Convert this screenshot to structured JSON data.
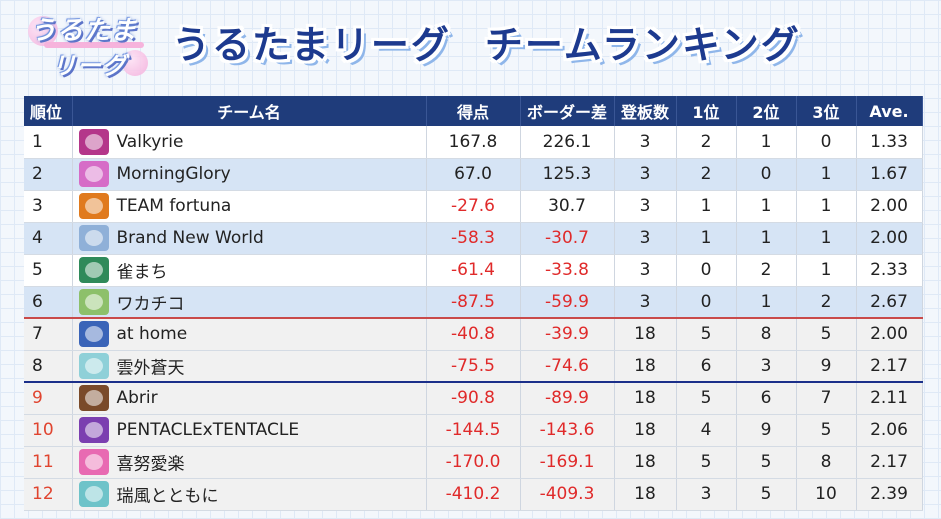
{
  "logo": {
    "line1": "うるたま",
    "line2": "リーグ"
  },
  "title": {
    "part1": "うるたまリーグ",
    "part2": "チームランキング"
  },
  "headers": [
    "順位",
    "チーム名",
    "得点",
    "ボーダー差",
    "登板数",
    "1位",
    "2位",
    "3位",
    "Ave."
  ],
  "colors": {
    "header_bg": "#1f3c7b",
    "negative": "#e02a2a",
    "stripe": "#d6e4f5",
    "red_line": "#c94a4a",
    "blue_line": "#1b2f8a"
  },
  "rows": [
    {
      "rank": "1",
      "team": "Valkyrie",
      "emblem": "valkyrie-emblem",
      "emblem_color": "#b4368a",
      "score": "167.8",
      "border": "226.1",
      "games": "3",
      "first": "2",
      "second": "1",
      "third": "0",
      "ave": "1.33"
    },
    {
      "rank": "2",
      "team": "MorningGlory",
      "emblem": "morningglory-emblem",
      "emblem_color": "#d66cc7",
      "score": "67.0",
      "border": "125.3",
      "games": "3",
      "first": "2",
      "second": "0",
      "third": "1",
      "ave": "1.67"
    },
    {
      "rank": "3",
      "team": "TEAM fortuna",
      "emblem": "fortuna-emblem",
      "emblem_color": "#e07a1e",
      "score": "-27.6",
      "border": "30.7",
      "games": "3",
      "first": "1",
      "second": "1",
      "third": "1",
      "ave": "2.00"
    },
    {
      "rank": "4",
      "team": "Brand New World",
      "emblem": "brandnewworld-emblem",
      "emblem_color": "#8fb0d8",
      "score": "-58.3",
      "border": "-30.7",
      "games": "3",
      "first": "1",
      "second": "1",
      "third": "1",
      "ave": "2.00"
    },
    {
      "rank": "5",
      "team": "雀まち",
      "emblem": "jyanmachi-emblem",
      "emblem_color": "#2f8a5a",
      "score": "-61.4",
      "border": "-33.8",
      "games": "3",
      "first": "0",
      "second": "2",
      "third": "1",
      "ave": "2.33"
    },
    {
      "rank": "6",
      "team": "ワカチコ",
      "emblem": "wakachiko-emblem",
      "emblem_color": "#8dc06a",
      "score": "-87.5",
      "border": "-59.9",
      "games": "3",
      "first": "0",
      "second": "1",
      "third": "2",
      "ave": "2.67"
    },
    {
      "rank": "7",
      "team": "at home",
      "emblem": "athome-emblem",
      "emblem_color": "#3a64b8",
      "score": "-40.8",
      "border": "-39.9",
      "games": "18",
      "first": "5",
      "second": "8",
      "third": "5",
      "ave": "2.00"
    },
    {
      "rank": "8",
      "team": "雲外蒼天",
      "emblem": "ungaisouten-emblem",
      "emblem_color": "#8fd0d8",
      "score": "-75.5",
      "border": "-74.6",
      "games": "18",
      "first": "6",
      "second": "3",
      "third": "9",
      "ave": "2.17"
    },
    {
      "rank": "9",
      "team": "Abrir",
      "emblem": "abrir-emblem",
      "emblem_color": "#7a4a2a",
      "score": "-90.8",
      "border": "-89.9",
      "games": "18",
      "first": "5",
      "second": "6",
      "third": "7",
      "ave": "2.11"
    },
    {
      "rank": "10",
      "team": "PENTACLExTENTACLE",
      "emblem": "pentacle-emblem",
      "emblem_color": "#7b3fb0",
      "score": "-144.5",
      "border": "-143.6",
      "games": "18",
      "first": "4",
      "second": "9",
      "third": "5",
      "ave": "2.06"
    },
    {
      "rank": "11",
      "team": "喜努愛楽",
      "emblem": "kidoairaku-emblem",
      "emblem_color": "#e86ab2",
      "score": "-170.0",
      "border": "-169.1",
      "games": "18",
      "first": "5",
      "second": "5",
      "third": "8",
      "ave": "2.17"
    },
    {
      "rank": "12",
      "team": "瑞風とともに",
      "emblem": "zuifuu-emblem",
      "emblem_color": "#6ec3c9",
      "score": "-410.2",
      "border": "-409.3",
      "games": "18",
      "first": "3",
      "second": "5",
      "third": "10",
      "ave": "2.39"
    }
  ]
}
